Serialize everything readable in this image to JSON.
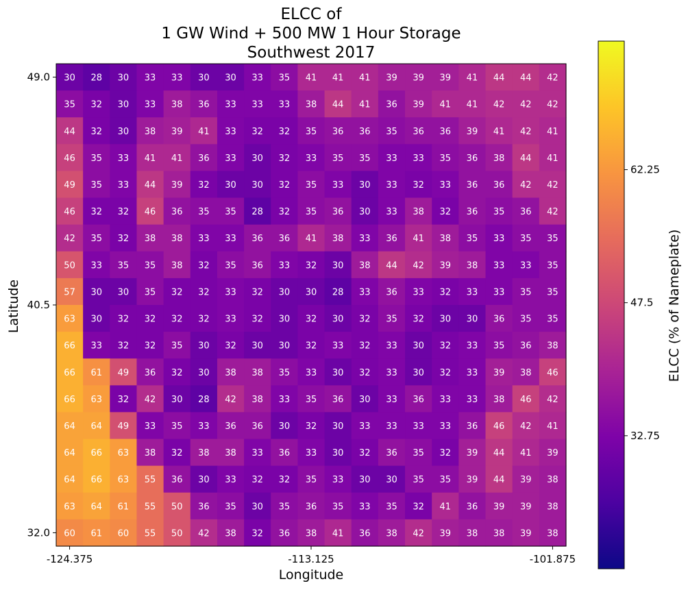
{
  "chart_data": {
    "type": "heatmap",
    "title": [
      "ELCC of",
      "1 GW Wind + 500 MW 1 Hour Storage",
      "Southwest 2017"
    ],
    "xlabel": "Longitude",
    "ylabel": "Latitude",
    "colorbar_label": "ELCC (% of Nameplate)",
    "colormap": "plasma",
    "color_range": [
      18.0,
      76.5
    ],
    "x_ticks": [
      "-124.375",
      "-113.125",
      "-101.875"
    ],
    "y_ticks": [
      "49.0",
      "40.5",
      "32.0"
    ],
    "colorbar_ticks": [
      "32.75",
      "47.5",
      "62.25"
    ],
    "rows": [
      [
        30,
        28,
        30,
        33,
        33,
        30,
        30,
        33,
        35,
        41,
        41,
        41,
        39,
        39,
        39,
        41,
        44,
        44,
        42
      ],
      [
        35,
        32,
        30,
        33,
        38,
        36,
        33,
        33,
        33,
        38,
        44,
        41,
        36,
        39,
        41,
        41,
        42,
        42,
        42
      ],
      [
        44,
        32,
        30,
        38,
        39,
        41,
        33,
        32,
        32,
        35,
        36,
        36,
        35,
        36,
        36,
        39,
        41,
        42,
        41
      ],
      [
        46,
        35,
        33,
        41,
        41,
        36,
        33,
        30,
        32,
        33,
        35,
        35,
        33,
        33,
        35,
        36,
        38,
        44,
        41
      ],
      [
        49,
        35,
        33,
        44,
        39,
        32,
        30,
        30,
        32,
        35,
        33,
        30,
        33,
        32,
        33,
        36,
        36,
        42,
        42
      ],
      [
        46,
        32,
        32,
        46,
        36,
        35,
        35,
        28,
        32,
        35,
        36,
        30,
        33,
        38,
        32,
        36,
        35,
        36,
        42
      ],
      [
        42,
        35,
        32,
        38,
        38,
        33,
        33,
        36,
        36,
        41,
        38,
        33,
        36,
        41,
        38,
        35,
        33,
        35,
        35
      ],
      [
        50,
        33,
        35,
        35,
        38,
        32,
        35,
        36,
        33,
        32,
        30,
        38,
        44,
        42,
        39,
        38,
        33,
        33,
        35
      ],
      [
        57,
        30,
        30,
        35,
        32,
        32,
        33,
        32,
        30,
        30,
        28,
        33,
        36,
        33,
        32,
        33,
        33,
        35,
        35
      ],
      [
        63,
        30,
        32,
        32,
        32,
        32,
        33,
        32,
        30,
        32,
        30,
        32,
        35,
        32,
        30,
        30,
        36,
        35,
        35
      ],
      [
        66,
        33,
        32,
        32,
        35,
        30,
        32,
        30,
        30,
        32,
        33,
        32,
        33,
        30,
        32,
        33,
        35,
        36,
        38
      ],
      [
        66,
        61,
        49,
        36,
        32,
        30,
        38,
        38,
        35,
        33,
        30,
        32,
        33,
        30,
        32,
        33,
        39,
        38,
        46
      ],
      [
        66,
        63,
        32,
        42,
        30,
        28,
        42,
        38,
        33,
        35,
        36,
        30,
        33,
        36,
        33,
        33,
        38,
        46,
        42
      ],
      [
        64,
        64,
        49,
        33,
        35,
        33,
        36,
        36,
        30,
        32,
        30,
        33,
        33,
        33,
        33,
        36,
        46,
        42,
        41
      ],
      [
        64,
        66,
        63,
        38,
        32,
        38,
        38,
        33,
        36,
        33,
        30,
        32,
        36,
        35,
        32,
        39,
        44,
        41,
        39
      ],
      [
        64,
        66,
        63,
        55,
        36,
        30,
        33,
        32,
        32,
        35,
        33,
        30,
        30,
        35,
        35,
        39,
        44,
        39,
        38
      ],
      [
        63,
        64,
        61,
        55,
        50,
        36,
        35,
        30,
        35,
        36,
        35,
        33,
        35,
        32,
        41,
        36,
        39,
        39,
        38
      ],
      [
        60,
        61,
        60,
        55,
        50,
        42,
        38,
        32,
        36,
        38,
        41,
        36,
        38,
        42,
        39,
        38,
        38,
        39,
        38
      ]
    ]
  }
}
